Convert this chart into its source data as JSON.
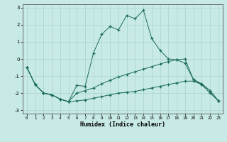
{
  "xlabel": "Humidex (Indice chaleur)",
  "xlim": [
    -0.5,
    23.5
  ],
  "ylim": [
    -3.2,
    3.2
  ],
  "yticks": [
    -3,
    -2,
    -1,
    0,
    1,
    2,
    3
  ],
  "xticks": [
    0,
    1,
    2,
    3,
    4,
    5,
    6,
    7,
    8,
    9,
    10,
    11,
    12,
    13,
    14,
    15,
    16,
    17,
    18,
    19,
    20,
    21,
    22,
    23
  ],
  "bg_color": "#c8eae6",
  "line_color": "#1a6b5a",
  "grid_color": "#a8d4ce",
  "series": [
    {
      "x": [
        0,
        1,
        2,
        3,
        4,
        5,
        6,
        7,
        8,
        9,
        10,
        11,
        12,
        13,
        14,
        15,
        16,
        17,
        18,
        19,
        20,
        21,
        22,
        23
      ],
      "y": [
        -0.5,
        -1.5,
        -2.0,
        -2.1,
        -2.35,
        -2.5,
        -1.55,
        -1.6,
        0.35,
        1.45,
        1.9,
        1.7,
        2.55,
        2.35,
        2.85,
        1.2,
        0.5,
        0.0,
        -0.05,
        -0.25,
        -1.2,
        -1.5,
        -2.0,
        -2.45
      ]
    },
    {
      "x": [
        0,
        1,
        2,
        3,
        4,
        5,
        6,
        7,
        8,
        9,
        10,
        11,
        12,
        13,
        14,
        15,
        16,
        17,
        18,
        19,
        20,
        21,
        22,
        23
      ],
      "y": [
        -0.5,
        -1.5,
        -2.0,
        -2.1,
        -2.35,
        -2.5,
        -2.0,
        -1.85,
        -1.7,
        -1.45,
        -1.25,
        -1.05,
        -0.9,
        -0.75,
        -0.6,
        -0.45,
        -0.3,
        -0.15,
        -0.05,
        0.0,
        -1.2,
        -1.45,
        -1.85,
        -2.45
      ]
    },
    {
      "x": [
        0,
        1,
        2,
        3,
        4,
        5,
        6,
        7,
        8,
        9,
        10,
        11,
        12,
        13,
        14,
        15,
        16,
        17,
        18,
        19,
        20,
        21,
        22,
        23
      ],
      "y": [
        -0.5,
        -1.5,
        -2.0,
        -2.1,
        -2.35,
        -2.5,
        -2.45,
        -2.4,
        -2.3,
        -2.2,
        -2.1,
        -2.0,
        -1.95,
        -1.9,
        -1.8,
        -1.7,
        -1.6,
        -1.5,
        -1.4,
        -1.3,
        -1.3,
        -1.5,
        -1.85,
        -2.45
      ]
    }
  ]
}
